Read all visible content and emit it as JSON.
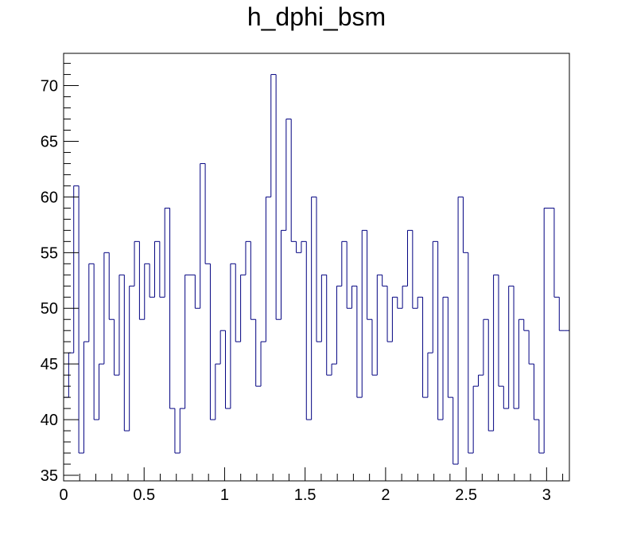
{
  "chart_data": {
    "type": "histogram",
    "title": "h_dphi_bsm",
    "xlabel": "",
    "ylabel": "",
    "xlim": [
      0,
      3.14159
    ],
    "ylim": [
      34.5,
      72.9
    ],
    "bin_width": 0.0314159,
    "x_ticks": [
      0,
      0.5,
      1,
      1.5,
      2,
      2.5,
      3
    ],
    "x_tick_labels": [
      "0",
      "0.5",
      "1",
      "1.5",
      "2",
      "2.5",
      "3"
    ],
    "y_ticks": [
      35,
      40,
      45,
      50,
      55,
      60,
      65,
      70
    ],
    "y_tick_labels": [
      "35",
      "40",
      "45",
      "50",
      "55",
      "60",
      "65",
      "70"
    ],
    "grid": false,
    "legend": false,
    "colors": {
      "line": "#000080",
      "frame": "#000000",
      "background": "#ffffff"
    },
    "series": [
      {
        "values": [
          42,
          46,
          61,
          37,
          47,
          54,
          40,
          45,
          55,
          49,
          44,
          53,
          39,
          52,
          56,
          49,
          54,
          51,
          56,
          51,
          59,
          41,
          37,
          41,
          53,
          53,
          50,
          63,
          54,
          40,
          45,
          48,
          41,
          54,
          47,
          53,
          56,
          49,
          43,
          47,
          60,
          71,
          49,
          57,
          67,
          56,
          55,
          56,
          40,
          60,
          47,
          53,
          44,
          45,
          52,
          56,
          50,
          52,
          42,
          57,
          49,
          44,
          53,
          52,
          47,
          51,
          50,
          52,
          57,
          50,
          51,
          42,
          46,
          56,
          40,
          51,
          42,
          36,
          60,
          55,
          37,
          43,
          44,
          49,
          39,
          53,
          43,
          41,
          52,
          41,
          49,
          48,
          45,
          40,
          37,
          59,
          59,
          51,
          48,
          48
        ]
      }
    ]
  }
}
